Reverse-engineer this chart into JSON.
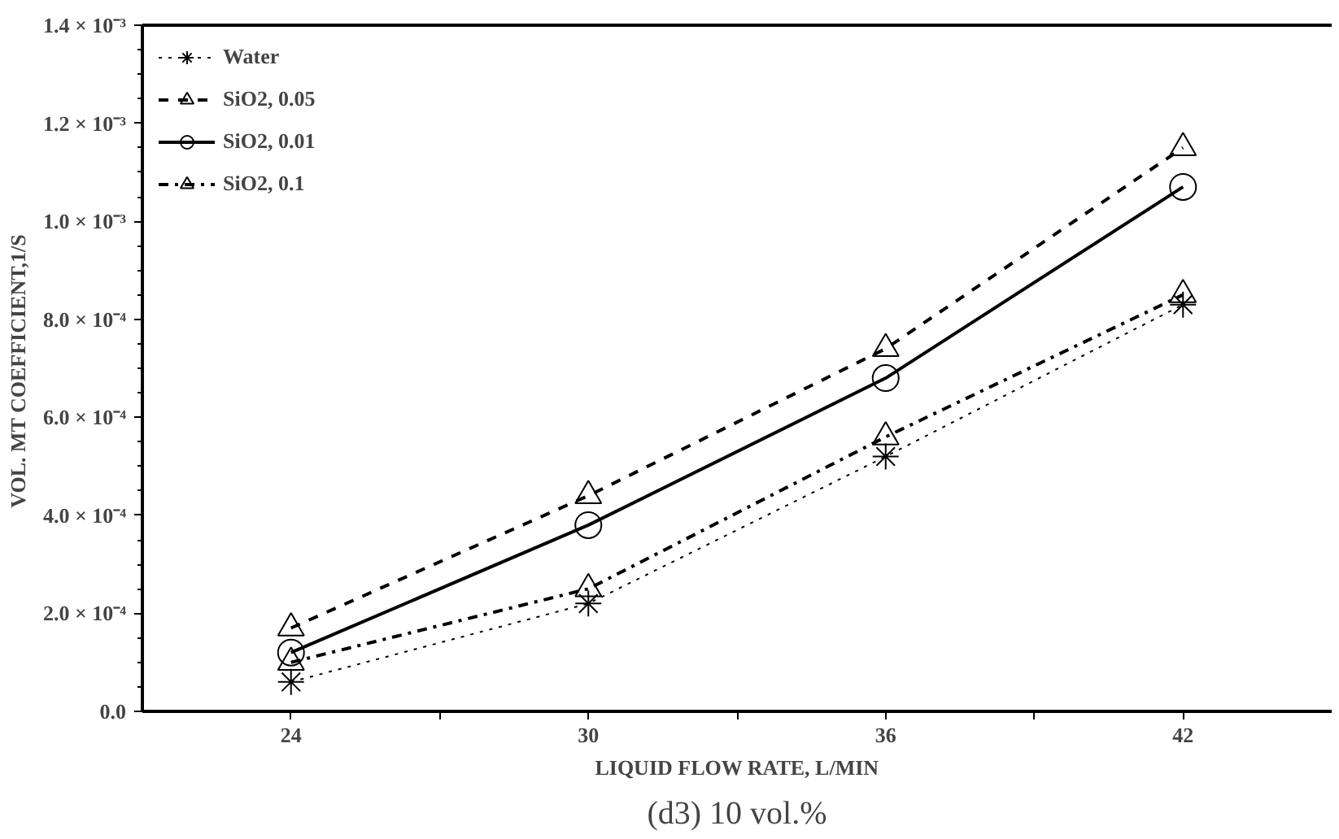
{
  "chart_data": {
    "type": "line",
    "xlabel": "LIQUID FLOW RATE, L/MIN",
    "ylabel": "VOL.  MT COEFFICIENT,1/S",
    "x": [
      24,
      30,
      36,
      42
    ],
    "series": [
      {
        "name": "Water",
        "color": "#000000",
        "marker": "cross",
        "line_style": "dotted",
        "values": [
          6e-05,
          0.00022,
          0.00052,
          0.00083
        ]
      },
      {
        "name": "SiO2, 0.05",
        "color": "#000000",
        "marker": "triangle",
        "line_style": "dashed",
        "values": [
          0.00017,
          0.00044,
          0.00074,
          0.00115
        ]
      },
      {
        "name": "SiO2, 0.01",
        "color": "#000000",
        "marker": "circle",
        "line_style": "solid",
        "values": [
          0.00012,
          0.00038,
          0.00068,
          0.00107
        ]
      },
      {
        "name": "SiO2, 0.1",
        "color": "#000000",
        "marker": "triangle",
        "line_style": "dashdot",
        "values": [
          0.0001,
          0.00025,
          0.00056,
          0.00085
        ]
      }
    ],
    "xlim": [
      21,
      45
    ],
    "xticks": [
      24,
      {
        "value": 27,
        "label": null
      },
      30,
      {
        "value": 33,
        "label": null
      },
      36,
      {
        "value": 39,
        "label": null
      },
      42
    ],
    "ylim": [
      0,
      0.0014
    ],
    "yticks": [
      {
        "value": 0,
        "label": "0.0"
      },
      {
        "value": 0.0002,
        "label": "2.0 × 10⁻⁴"
      },
      {
        "value": 0.0004,
        "label": "4.0 × 10⁻⁴"
      },
      {
        "value": 0.0006,
        "label": "6.0 × 10⁻⁴"
      },
      {
        "value": 0.0008,
        "label": "8.0 × 10⁻⁴"
      },
      {
        "value": 0.001,
        "label": "1.0 × 10⁻³"
      },
      {
        "value": 0.0012,
        "label": "1.2 × 10⁻³"
      },
      {
        "value": 0.0014,
        "label": "1.4 × 10⁻³"
      }
    ],
    "grid": false,
    "legend": "top left",
    "annotations": [
      "(d3) 10 vol.%"
    ]
  }
}
